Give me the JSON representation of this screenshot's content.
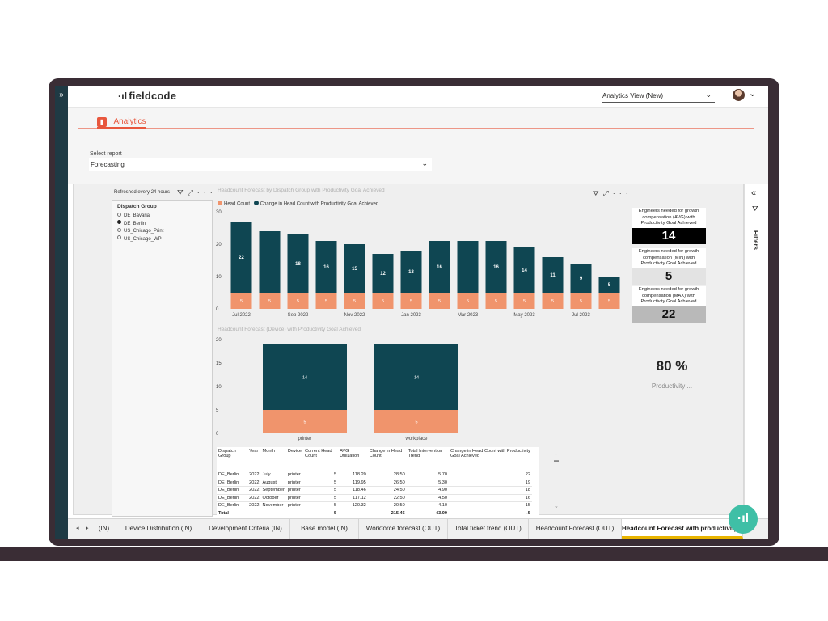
{
  "app": {
    "brand": "fieldcode",
    "view_selector": "Analytics View (New)"
  },
  "nav": {
    "analytics_label": "Analytics"
  },
  "report_select": {
    "label": "Select report",
    "value": "Forecasting"
  },
  "filters_pane": {
    "label": "Filters"
  },
  "slicer": {
    "refreshed": "Refreshed every 24 hours",
    "title": "Dispatch Group",
    "items": [
      {
        "label": "DE_Bavaria",
        "selected": false
      },
      {
        "label": "DE_Berlin",
        "selected": true
      },
      {
        "label": "US_Chicago_Print",
        "selected": false
      },
      {
        "label": "US_Chicago_WP",
        "selected": false
      }
    ]
  },
  "chart_data": [
    {
      "type": "bar",
      "title": "Headcount Forecast by Dispatch Group with Productivity Goal Achieved",
      "stacked": true,
      "legend": "top-left",
      "ylim": [
        0,
        30
      ],
      "yticks": [
        0,
        10,
        20,
        30
      ],
      "x_tick_labels": [
        "Jul 2022",
        "Sep 2022",
        "Nov 2022",
        "Jan 2023",
        "Mar 2023",
        "May 2023",
        "Jul 2023"
      ],
      "series": [
        {
          "name": "Head Count",
          "color": "#f0946c",
          "values": [
            5,
            5,
            5,
            5,
            5,
            5,
            5,
            5,
            5,
            5,
            5,
            5,
            5,
            5
          ]
        },
        {
          "name": "Change in Head Count with Productivity Goal Achieved",
          "color": "#0f4652",
          "values": [
            22,
            19,
            18,
            16,
            15,
            12,
            13,
            16,
            16,
            16,
            14,
            11,
            9,
            5
          ]
        }
      ],
      "labels_bottom": [
        "5",
        "5",
        "5",
        "5",
        "5",
        "5",
        "5",
        "5",
        "5",
        "5",
        "5",
        "5",
        "5",
        "5"
      ],
      "labels_top": [
        "22",
        "",
        "18",
        "16",
        "15",
        "12",
        "13",
        "16",
        "",
        "16",
        "14",
        "11",
        "9",
        "5"
      ]
    },
    {
      "type": "bar",
      "title": "Headcount Forecast (Device) with Productivity Goal Achieved",
      "stacked": true,
      "ylim": [
        0,
        20
      ],
      "yticks": [
        0,
        5,
        10,
        15,
        20
      ],
      "categories": [
        "printer",
        "workplace"
      ],
      "series": [
        {
          "name": "Head Count",
          "color": "#f0946c",
          "values": [
            5,
            5
          ]
        },
        {
          "name": "Change in Head Count with Productivity Goal Achieved",
          "color": "#0f4652",
          "values": [
            14,
            14
          ]
        }
      ]
    }
  ],
  "cards": [
    {
      "label": "Engineers needed for growth compensation (AVG) with Productivity Goal Achieved",
      "value": "14",
      "bg": "#000000",
      "fg": "#ffffff"
    },
    {
      "label": "Engineers needed for growth compensation (MIN) with Productivity Goal Achieved",
      "value": "5",
      "bg": "#e3e3e3",
      "fg": "#111111"
    },
    {
      "label": "Engineers needed for growth compensation (MAX) with Productivity Goal Achieved",
      "value": "22",
      "bg": "#b9b9b9",
      "fg": "#111111"
    }
  ],
  "kpi": {
    "value": "80 %",
    "label": "Productivity ..."
  },
  "table": {
    "columns": [
      "Dispatch Group",
      "Year",
      "Month",
      "Device",
      "Current Head Count",
      "AVG Utilization",
      "Change in Head Count",
      "Total Intervention Trend",
      "Change in Head Count with Productivity Goal Achieved"
    ],
    "rows": [
      [
        "DE_Berlin",
        "2022",
        "July",
        "printer",
        "5",
        "118.20",
        "28.50",
        "5.70",
        "22"
      ],
      [
        "DE_Berlin",
        "2022",
        "August",
        "printer",
        "5",
        "119.95",
        "26.50",
        "5.30",
        "19"
      ],
      [
        "DE_Berlin",
        "2022",
        "September",
        "printer",
        "5",
        "118.46",
        "24.50",
        "4.90",
        "18"
      ],
      [
        "DE_Berlin",
        "2022",
        "October",
        "printer",
        "5",
        "117.12",
        "22.50",
        "4.50",
        "16"
      ],
      [
        "DE_Berlin",
        "2022",
        "November",
        "printer",
        "5",
        "120.32",
        "20.50",
        "4.10",
        "15"
      ]
    ],
    "total": [
      "Total",
      "",
      "",
      "",
      "5",
      "",
      "215.46",
      "43.09",
      "-5"
    ]
  },
  "page_tabs": [
    {
      "label": "(IN)",
      "active": false
    },
    {
      "label": "Device Distribution (IN)",
      "active": false
    },
    {
      "label": "Development Criteria (IN)",
      "active": false
    },
    {
      "label": "Base model (IN)",
      "active": false
    },
    {
      "label": "Workforce forecast (OUT)",
      "active": false
    },
    {
      "label": "Total ticket trend (OUT)",
      "active": false
    },
    {
      "label": "Headcount Forecast (OUT)",
      "active": false
    },
    {
      "label": "Headcount Forecast with productivity goa",
      "active": true
    }
  ],
  "colors": {
    "accent": "#e8573d",
    "teal": "#0f4652",
    "salmon": "#f0946c",
    "chat": "#3fbfa6"
  },
  "icons": {
    "expand": "double-chevron-right-icon",
    "collapse": "double-chevron-left-icon",
    "filter": "funnel-icon",
    "focus": "focus-mode-icon",
    "more": "more-options-icon",
    "chat": "chat-assistant-icon"
  }
}
